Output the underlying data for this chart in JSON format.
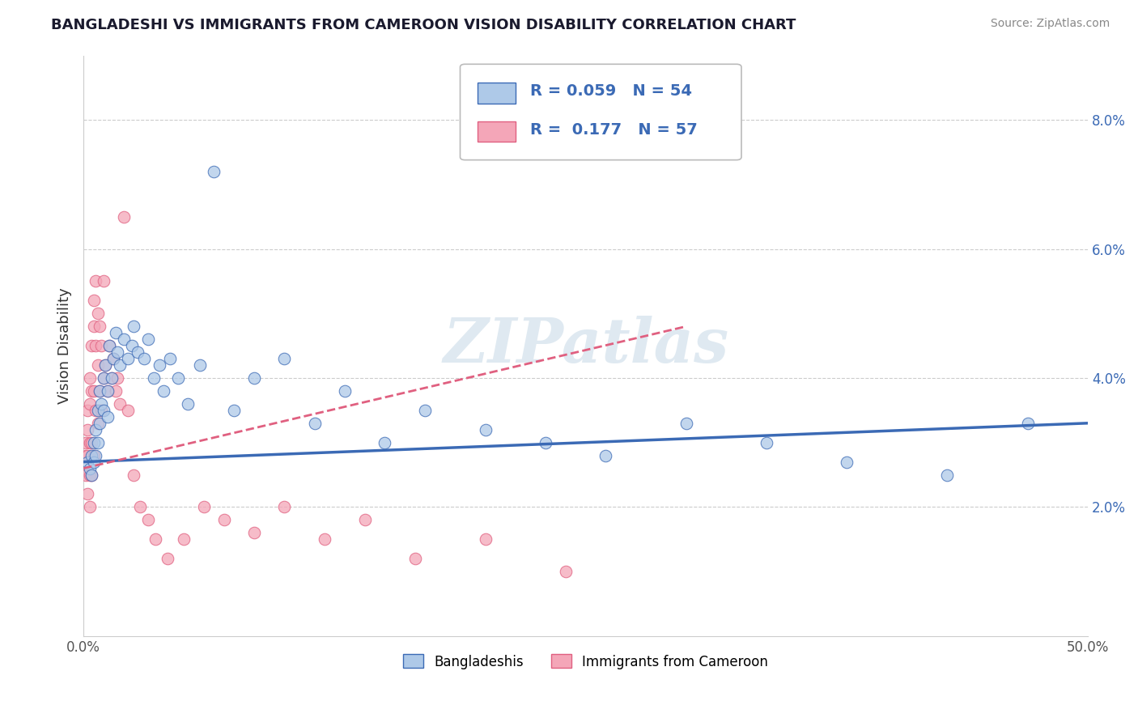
{
  "title": "BANGLADESHI VS IMMIGRANTS FROM CAMEROON VISION DISABILITY CORRELATION CHART",
  "source": "Source: ZipAtlas.com",
  "ylabel": "Vision Disability",
  "xlim": [
    0.0,
    0.5
  ],
  "ylim": [
    0.0,
    0.09
  ],
  "bangladeshi_R": 0.059,
  "bangladeshi_N": 54,
  "cameroon_R": 0.177,
  "cameroon_N": 57,
  "bangladeshi_color": "#aec9e8",
  "cameroon_color": "#f4a6b8",
  "bangladeshi_line_color": "#3b6ab5",
  "cameroon_line_color": "#e06080",
  "watermark": "ZIPatlas",
  "legend_label_1": "Bangladeshis",
  "legend_label_2": "Immigrants from Cameroon",
  "bangladeshi_x": [
    0.002,
    0.003,
    0.004,
    0.004,
    0.005,
    0.005,
    0.006,
    0.006,
    0.007,
    0.007,
    0.008,
    0.008,
    0.009,
    0.01,
    0.01,
    0.011,
    0.012,
    0.012,
    0.013,
    0.014,
    0.015,
    0.016,
    0.017,
    0.018,
    0.02,
    0.022,
    0.024,
    0.025,
    0.027,
    0.03,
    0.032,
    0.035,
    0.038,
    0.04,
    0.043,
    0.047,
    0.052,
    0.058,
    0.065,
    0.075,
    0.085,
    0.1,
    0.115,
    0.13,
    0.15,
    0.17,
    0.2,
    0.23,
    0.26,
    0.3,
    0.34,
    0.38,
    0.43,
    0.47
  ],
  "bangladeshi_y": [
    0.027,
    0.026,
    0.028,
    0.025,
    0.03,
    0.027,
    0.032,
    0.028,
    0.035,
    0.03,
    0.038,
    0.033,
    0.036,
    0.04,
    0.035,
    0.042,
    0.038,
    0.034,
    0.045,
    0.04,
    0.043,
    0.047,
    0.044,
    0.042,
    0.046,
    0.043,
    0.045,
    0.048,
    0.044,
    0.043,
    0.046,
    0.04,
    0.042,
    0.038,
    0.043,
    0.04,
    0.036,
    0.042,
    0.072,
    0.035,
    0.04,
    0.043,
    0.033,
    0.038,
    0.03,
    0.035,
    0.032,
    0.03,
    0.028,
    0.033,
    0.03,
    0.027,
    0.025,
    0.033
  ],
  "cameroon_x": [
    0.001,
    0.001,
    0.001,
    0.002,
    0.002,
    0.002,
    0.002,
    0.003,
    0.003,
    0.003,
    0.003,
    0.003,
    0.004,
    0.004,
    0.004,
    0.004,
    0.005,
    0.005,
    0.005,
    0.005,
    0.006,
    0.006,
    0.006,
    0.007,
    0.007,
    0.007,
    0.008,
    0.008,
    0.009,
    0.009,
    0.01,
    0.01,
    0.011,
    0.012,
    0.013,
    0.014,
    0.015,
    0.016,
    0.017,
    0.018,
    0.02,
    0.022,
    0.025,
    0.028,
    0.032,
    0.036,
    0.042,
    0.05,
    0.06,
    0.07,
    0.085,
    0.1,
    0.12,
    0.14,
    0.165,
    0.2,
    0.24
  ],
  "cameroon_y": [
    0.028,
    0.03,
    0.025,
    0.035,
    0.032,
    0.028,
    0.022,
    0.04,
    0.036,
    0.03,
    0.025,
    0.02,
    0.045,
    0.038,
    0.03,
    0.025,
    0.052,
    0.048,
    0.038,
    0.028,
    0.055,
    0.045,
    0.035,
    0.05,
    0.042,
    0.033,
    0.048,
    0.038,
    0.045,
    0.035,
    0.055,
    0.04,
    0.042,
    0.038,
    0.045,
    0.04,
    0.043,
    0.038,
    0.04,
    0.036,
    0.065,
    0.035,
    0.025,
    0.02,
    0.018,
    0.015,
    0.012,
    0.015,
    0.02,
    0.018,
    0.016,
    0.02,
    0.015,
    0.018,
    0.012,
    0.015,
    0.01
  ]
}
